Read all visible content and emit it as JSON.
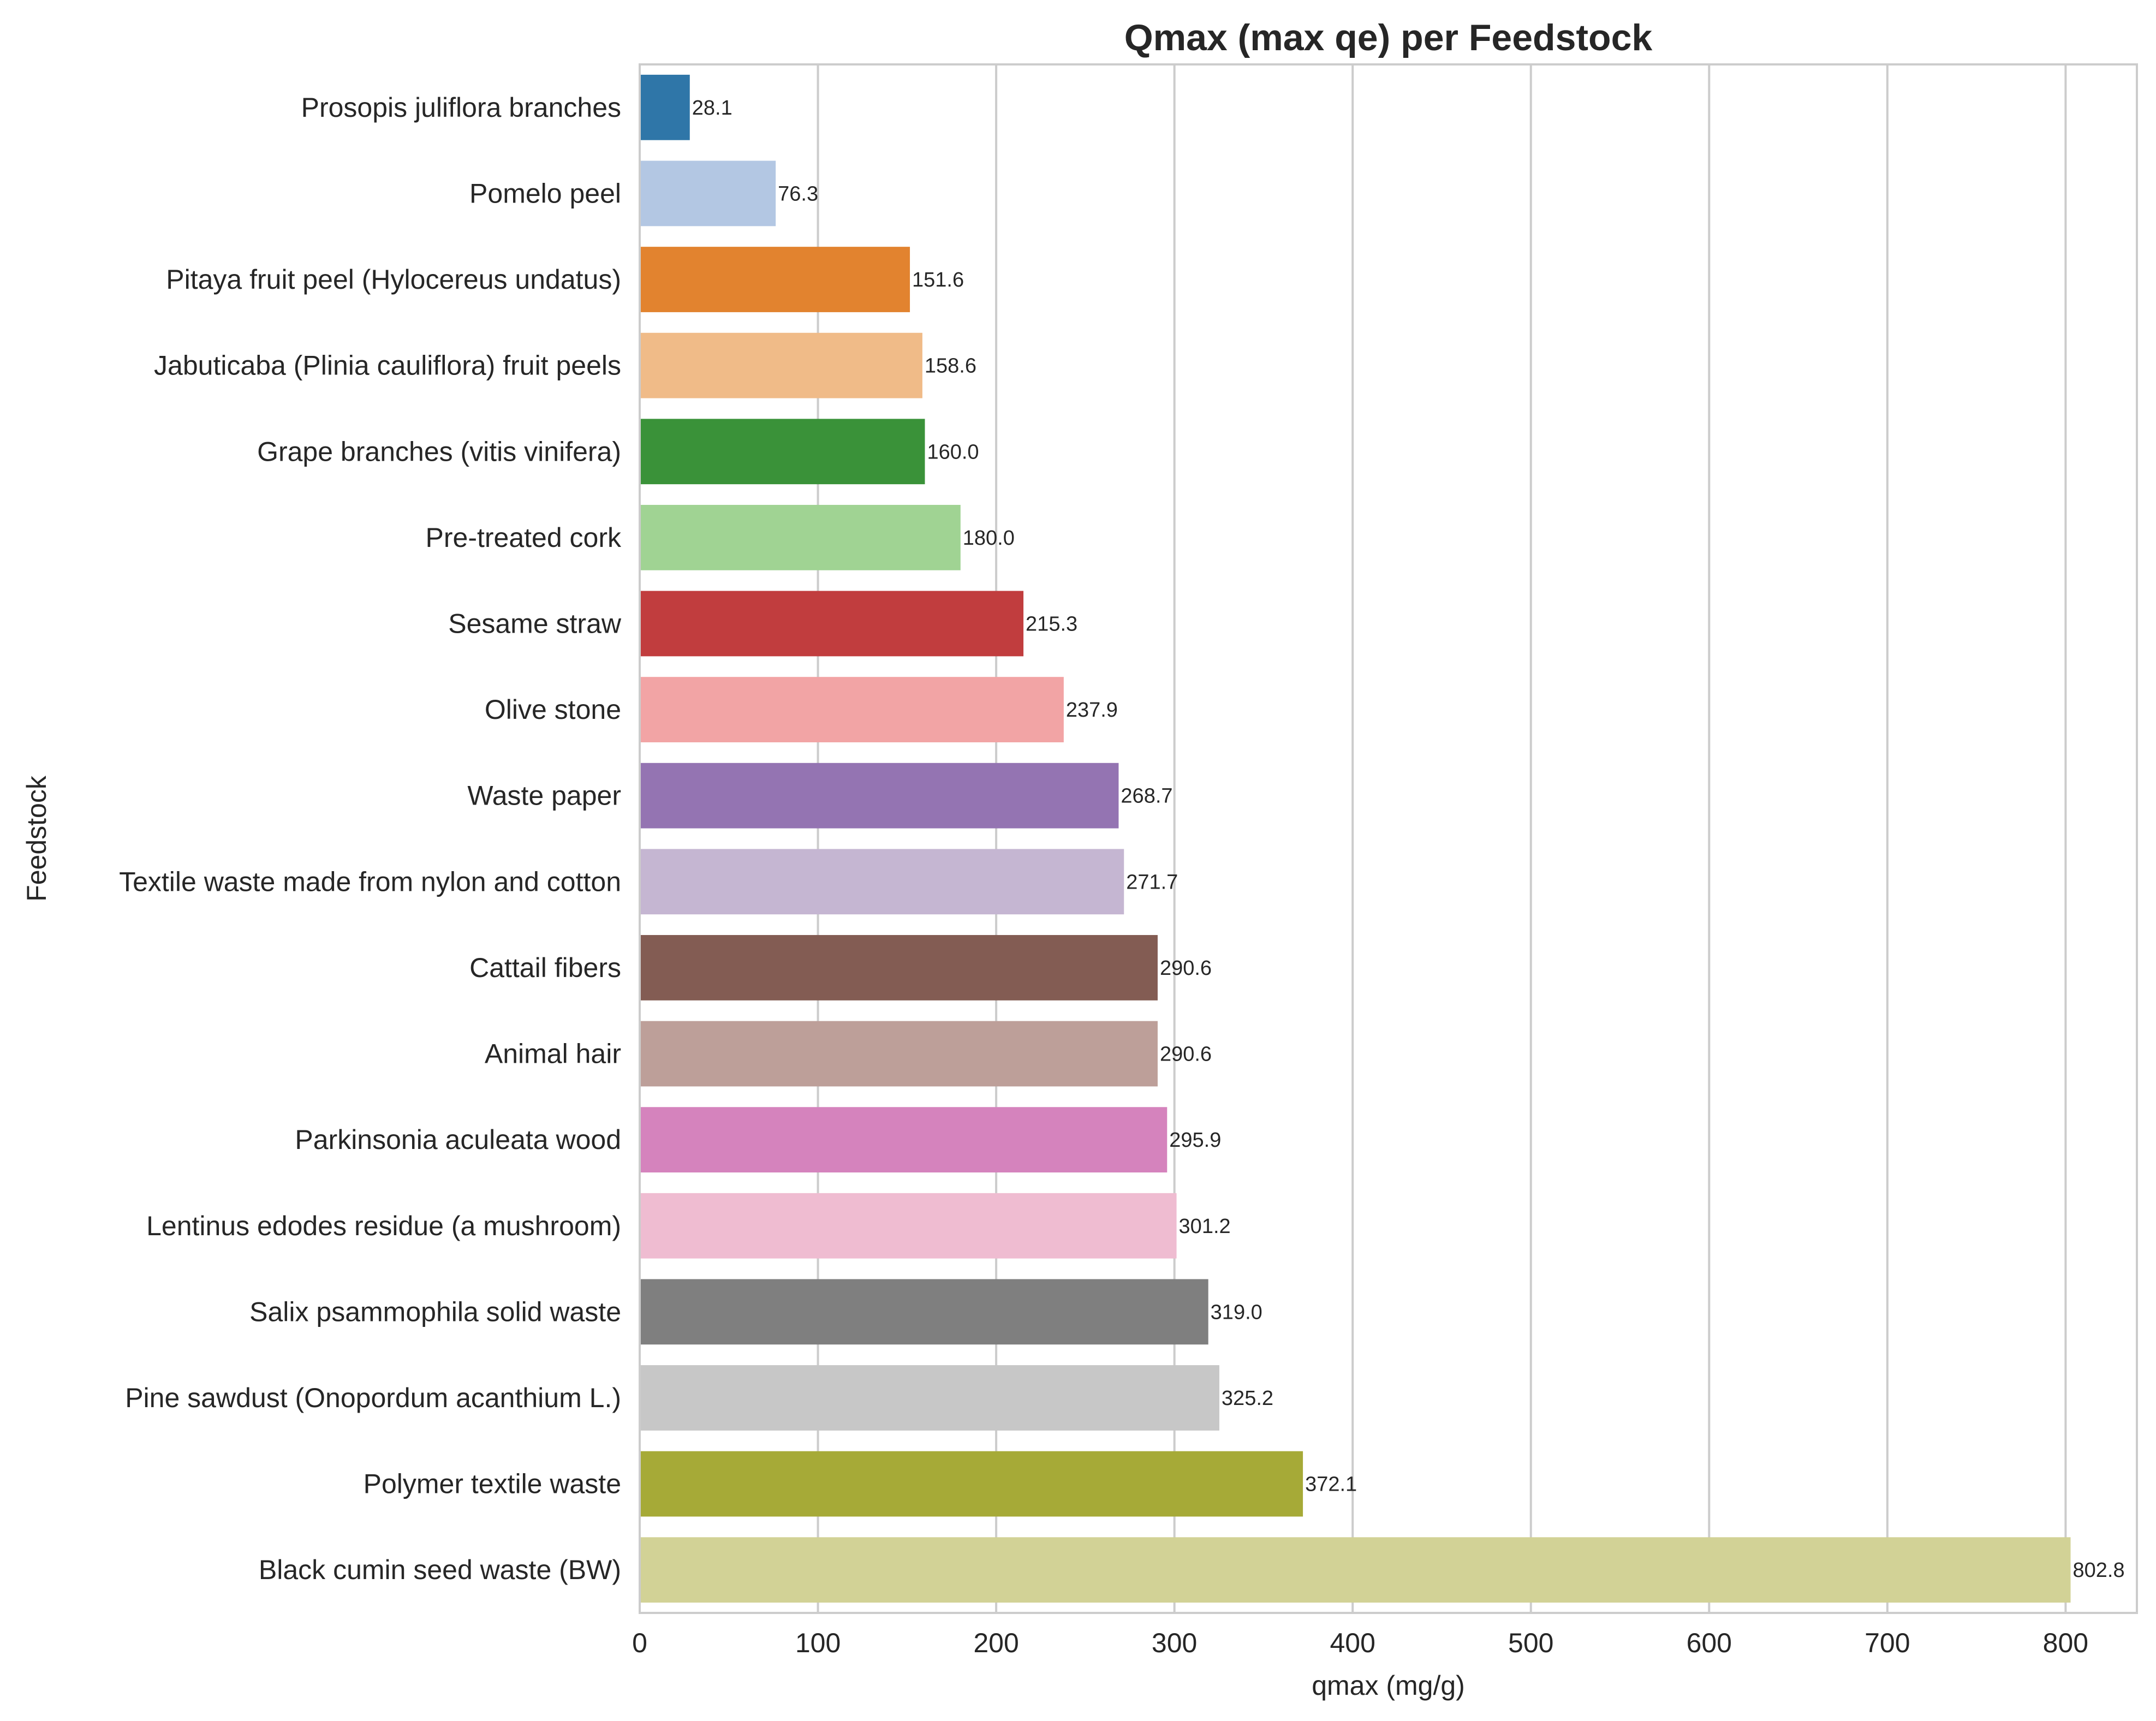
{
  "chart_data": {
    "type": "bar",
    "orientation": "horizontal",
    "title": "Qmax (max qe) per Feedstock",
    "xlabel": "qmax (mg/g)",
    "ylabel": "Feedstock",
    "xlim": [
      0,
      840
    ],
    "xticks": [
      0,
      100,
      200,
      300,
      400,
      500,
      600,
      700,
      800
    ],
    "grid": true,
    "categories": [
      "Prosopis juliflora branches",
      "Pomelo peel",
      "Pitaya fruit peel (Hylocereus undatus)",
      "Jabuticaba (Plinia cauliflora) fruit peels",
      "Grape branches (vitis vinifera)",
      "Pre-treated cork",
      "Sesame straw",
      "Olive stone",
      "Waste paper",
      "Textile waste made from nylon and cotton",
      "Cattail fibers",
      "Animal hair",
      "Parkinsonia aculeata wood",
      "Lentinus edodes residue (a mushroom)",
      "Salix psammophila solid waste",
      "Pine sawdust (Onopordum acanthium L.)",
      "Polymer textile waste",
      "Black cumin seed waste (BW)"
    ],
    "values": [
      28.1,
      76.3,
      151.6,
      158.6,
      160.0,
      180.0,
      215.3,
      237.9,
      268.7,
      271.7,
      290.6,
      290.6,
      295.9,
      301.2,
      319.0,
      325.2,
      372.1,
      802.8
    ],
    "value_labels": [
      "28.1",
      "76.3",
      "151.6",
      "158.6",
      "160.0",
      "180.0",
      "215.3",
      "237.9",
      "268.7",
      "271.7",
      "290.6",
      "290.6",
      "295.9",
      "301.2",
      "319.0",
      "325.2",
      "372.1",
      "802.8"
    ],
    "colors": [
      "#2f76a8",
      "#b3c7e3",
      "#e2832f",
      "#f0bb88",
      "#3a9239",
      "#a0d393",
      "#c13d3e",
      "#f2a4a5",
      "#9474b2",
      "#c5b6d2",
      "#835c53",
      "#bd9f99",
      "#d583bd",
      "#efbcd1",
      "#7f7f7f",
      "#c7c7c7",
      "#a6aa37",
      "#d2d296"
    ]
  }
}
